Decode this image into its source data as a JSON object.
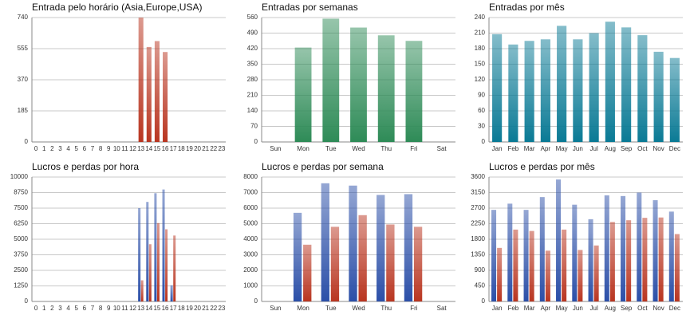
{
  "chart_data": [
    {
      "type": "bar",
      "title": "Entrada pelo horário (Asia,Europe,USA)",
      "categories": [
        "0",
        "1",
        "2",
        "3",
        "4",
        "5",
        "6",
        "7",
        "8",
        "9",
        "10",
        "11",
        "12",
        "13",
        "14",
        "15",
        "16",
        "17",
        "18",
        "19",
        "20",
        "21",
        "22",
        "23"
      ],
      "values": [
        0,
        0,
        0,
        0,
        0,
        0,
        0,
        0,
        0,
        0,
        0,
        0,
        0,
        740,
        565,
        600,
        535,
        0,
        0,
        0,
        0,
        0,
        0,
        0
      ],
      "color": "#b93520",
      "ylim": [
        0,
        740
      ],
      "yticks": [
        0,
        185,
        370,
        555,
        740
      ],
      "grid": true
    },
    {
      "type": "bar",
      "title": "Entradas por semanas",
      "categories": [
        "Sun",
        "Mon",
        "Tue",
        "Wed",
        "Thu",
        "Fri",
        "Sat"
      ],
      "values": [
        0,
        425,
        555,
        515,
        480,
        455,
        0
      ],
      "color": "#2e8b57",
      "ylim": [
        0,
        560
      ],
      "yticks": [
        0,
        70,
        140,
        210,
        280,
        350,
        420,
        490,
        560
      ],
      "grid": true
    },
    {
      "type": "bar",
      "title": "Entradas por mês",
      "categories": [
        "Jan",
        "Feb",
        "Mar",
        "Apr",
        "May",
        "Jun",
        "Jul",
        "Aug",
        "Sep",
        "Oct",
        "Nov",
        "Dec"
      ],
      "values": [
        208,
        188,
        195,
        198,
        224,
        198,
        210,
        232,
        221,
        206,
        174,
        162
      ],
      "color": "#0a7a95",
      "ylim": [
        0,
        240
      ],
      "yticks": [
        0,
        30,
        60,
        90,
        120,
        150,
        180,
        210,
        240
      ],
      "grid": true
    },
    {
      "type": "bar",
      "title": "Lucros e perdas por hora",
      "categories": [
        "0",
        "1",
        "2",
        "3",
        "4",
        "5",
        "6",
        "7",
        "8",
        "9",
        "10",
        "11",
        "12",
        "13",
        "14",
        "15",
        "16",
        "17",
        "18",
        "19",
        "20",
        "21",
        "22",
        "23"
      ],
      "series": [
        {
          "color": "#2b4fa8",
          "values": [
            0,
            0,
            0,
            0,
            0,
            0,
            0,
            0,
            0,
            0,
            0,
            0,
            0,
            7500,
            8000,
            8700,
            9000,
            1300,
            0,
            0,
            0,
            0,
            0,
            0
          ]
        },
        {
          "color": "#b93520",
          "values": [
            0,
            0,
            0,
            0,
            0,
            0,
            0,
            0,
            0,
            0,
            0,
            0,
            0,
            1700,
            4600,
            6300,
            5800,
            5300,
            0,
            0,
            0,
            0,
            0,
            0
          ]
        }
      ],
      "ylim": [
        0,
        10000
      ],
      "yticks": [
        0,
        1250,
        2500,
        3750,
        5000,
        6250,
        7500,
        8750,
        10000
      ],
      "grid": true
    },
    {
      "type": "bar",
      "title": "Lucros e perdas por semana",
      "categories": [
        "Sun",
        "Mon",
        "Tue",
        "Wed",
        "Thu",
        "Fri",
        "Sat"
      ],
      "series": [
        {
          "color": "#2b4fa8",
          "values": [
            0,
            5700,
            7600,
            7450,
            6850,
            6900,
            0
          ]
        },
        {
          "color": "#b93520",
          "values": [
            0,
            3650,
            4800,
            5550,
            4950,
            4800,
            0
          ]
        }
      ],
      "ylim": [
        0,
        8000
      ],
      "yticks": [
        0,
        1000,
        2000,
        3000,
        4000,
        5000,
        6000,
        7000,
        8000
      ],
      "grid": true
    },
    {
      "type": "bar",
      "title": "Lucros e perdas por mês",
      "categories": [
        "Jan",
        "Feb",
        "Mar",
        "Apr",
        "May",
        "Jun",
        "Jul",
        "Aug",
        "Sep",
        "Oct",
        "Nov",
        "Dec"
      ],
      "series": [
        {
          "color": "#2b4fa8",
          "values": [
            2650,
            2830,
            2650,
            3020,
            3530,
            2800,
            2380,
            3070,
            3050,
            3150,
            2930,
            2600
          ]
        },
        {
          "color": "#b93520",
          "values": [
            1550,
            2080,
            2040,
            1470,
            2080,
            1490,
            1620,
            2300,
            2350,
            2420,
            2430,
            1950
          ]
        }
      ],
      "ylim": [
        0,
        3600
      ],
      "yticks": [
        0,
        450,
        900,
        1350,
        1800,
        2250,
        2700,
        3150,
        3600
      ],
      "grid": true
    }
  ]
}
